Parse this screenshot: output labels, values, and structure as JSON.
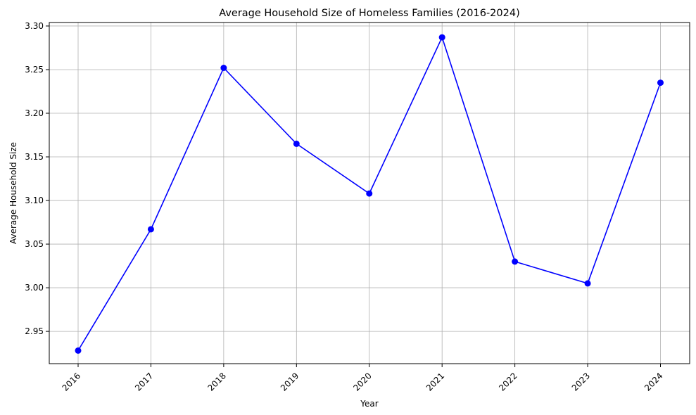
{
  "chart_data": {
    "type": "line",
    "title": "Average Household Size of Homeless Families (2016-2024)",
    "xlabel": "Year",
    "ylabel": "Average Household Size",
    "x": [
      "2016",
      "2017",
      "2018",
      "2019",
      "2020",
      "2021",
      "2022",
      "2023",
      "2024"
    ],
    "series": [
      {
        "values": [
          2.928,
          3.067,
          3.252,
          3.165,
          3.108,
          3.287,
          3.03,
          3.005,
          3.235
        ],
        "color": "#0000ff",
        "marker": "circle"
      }
    ],
    "yticks": [
      "2.95",
      "3.00",
      "3.05",
      "3.10",
      "3.15",
      "3.20",
      "3.25",
      "3.30"
    ],
    "ylim": [
      2.913,
      3.304
    ],
    "grid": true,
    "legend": "none",
    "xtick_rotation": 45,
    "colors": {
      "line": "#0000ff",
      "grid": "#b0b0b0",
      "axes": "#000000"
    }
  }
}
